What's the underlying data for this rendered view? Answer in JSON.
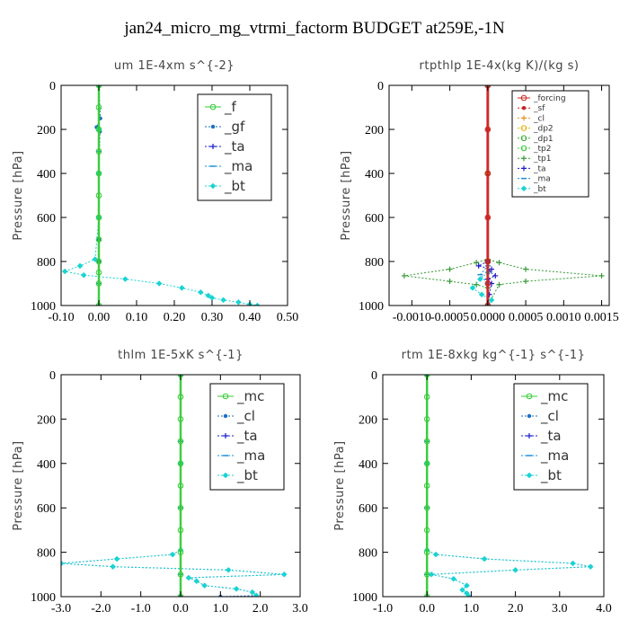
{
  "figure_title": "jan24_micro_mg_vtrmi_factorm  BUDGET at259E,-1N",
  "chart_data": [
    {
      "type": "line",
      "title": "um   1E-4xm s^{-2}",
      "ylabel": "Pressure [hPa]",
      "xlim": [
        -0.1,
        0.5
      ],
      "ylim": [
        1000,
        0
      ],
      "xticks": [
        "-0.10",
        "0.00",
        "0.10",
        "0.20",
        "0.30",
        "0.40",
        "0.50"
      ],
      "yticks": [
        "0",
        "200",
        "400",
        "600",
        "800",
        "1000"
      ],
      "legend_placement": "top-right",
      "legend_style": "large",
      "series": [
        {
          "name": "_f",
          "color": "#33cc33",
          "marker": "circle",
          "x": [
            0,
            0,
            0,
            0,
            0,
            0,
            0,
            0,
            0,
            0,
            0,
            0
          ],
          "y": [
            0,
            100,
            200,
            300,
            400,
            500,
            600,
            700,
            800,
            850,
            900,
            1000
          ]
        },
        {
          "name": "_gf",
          "color": "#1a6fc0",
          "marker": "dot",
          "x": [
            0,
            0.004,
            -0.006,
            0.003,
            0,
            0,
            0,
            0
          ],
          "y": [
            0,
            150,
            190,
            210,
            400,
            600,
            700,
            800
          ]
        },
        {
          "name": "_ta",
          "color": "#1a1acc",
          "marker": "plus",
          "x": [
            0,
            0,
            0,
            0,
            0
          ],
          "y": [
            0,
            300,
            600,
            900,
            1000
          ]
        },
        {
          "name": "_ma",
          "color": "#1a8fd6",
          "marker": "dash",
          "x": [
            0,
            0,
            0,
            0,
            0
          ],
          "y": [
            0,
            300,
            600,
            900,
            1000
          ]
        },
        {
          "name": "_bt",
          "color": "#19d3d3",
          "marker": "diamond",
          "x": [
            0,
            0,
            0,
            0,
            -0.01,
            -0.05,
            -0.09,
            -0.04,
            0.07,
            0.16,
            0.22,
            0.27,
            0.29,
            0.3,
            0.33,
            0.37,
            0.4,
            0.42
          ],
          "y": [
            0,
            200,
            400,
            600,
            790,
            820,
            845,
            862,
            880,
            900,
            920,
            940,
            955,
            965,
            975,
            985,
            995,
            1000
          ]
        }
      ]
    },
    {
      "type": "line",
      "title": "rtpthlp   1E-4x(kg K)/(kg s)",
      "ylabel": "Pressure [hPa]",
      "xlim": [
        -0.0013,
        0.0016
      ],
      "ylim": [
        1000,
        0
      ],
      "xticks": [
        "-0.0010",
        "-0.0005",
        "0.0000",
        "0.0005",
        "0.0010",
        "0.0015"
      ],
      "yticks": [
        "0",
        "200",
        "400",
        "600",
        "800",
        "1000"
      ],
      "legend_placement": "top-right",
      "legend_style": "small",
      "series": [
        {
          "name": "_forcing",
          "color": "#cc2222",
          "marker": "circle",
          "x": [
            0,
            0,
            0,
            0,
            0,
            0,
            0
          ],
          "y": [
            0,
            200,
            400,
            600,
            800,
            900,
            1000
          ]
        },
        {
          "name": "_sf",
          "color": "#cc2222",
          "marker": "dot",
          "x": [
            0,
            0,
            0,
            0,
            0,
            0,
            0
          ],
          "y": [
            0,
            200,
            400,
            600,
            800,
            900,
            1000
          ]
        },
        {
          "name": "_cl",
          "color": "#e89020",
          "marker": "plus",
          "x": [
            0,
            0,
            0,
            0
          ],
          "y": [
            0,
            400,
            800,
            1000
          ]
        },
        {
          "name": "_dp2",
          "color": "#e0b000",
          "marker": "circle",
          "x": [
            0,
            0,
            0,
            0
          ],
          "y": [
            0,
            400,
            800,
            1000
          ]
        },
        {
          "name": "_dp1",
          "color": "#33aa33",
          "marker": "circle",
          "x": [
            0,
            0,
            0,
            0
          ],
          "y": [
            0,
            400,
            800,
            1000
          ]
        },
        {
          "name": "_tp2",
          "color": "#33cc33",
          "marker": "circle",
          "x": [
            0,
            0,
            0,
            0
          ],
          "y": [
            0,
            400,
            800,
            1000
          ]
        },
        {
          "name": "_tp1",
          "color": "#339933",
          "marker": "plus",
          "x": [
            0,
            0,
            -0.00015,
            -0.0005,
            -0.0011,
            -0.0005,
            -0.00015,
            0,
            0,
            0.00015,
            0.0005,
            0.0015,
            0.0005,
            0.00015,
            0,
            0
          ],
          "y": [
            0,
            790,
            805,
            835,
            865,
            890,
            905,
            920,
            1000,
            905,
            890,
            865,
            835,
            805,
            790,
            0
          ]
        },
        {
          "name": "_ta",
          "color": "#1a1acc",
          "marker": "plus",
          "x": [
            0,
            0,
            -0.00012,
            5e-05,
            2e-05,
            0.0001,
            0,
            5e-05,
            2e-05,
            0
          ],
          "y": [
            0,
            800,
            820,
            835,
            845,
            865,
            880,
            900,
            950,
            1000
          ]
        },
        {
          "name": "_ma",
          "color": "#1a8fd6",
          "marker": "dash",
          "x": [
            0,
            0,
            -0.0001,
            0,
            0
          ],
          "y": [
            0,
            820,
            860,
            900,
            1000
          ]
        },
        {
          "name": "_bt",
          "color": "#19d3d3",
          "marker": "diamond",
          "x": [
            0,
            0,
            -0.0001,
            -0.0002,
            -8e-05,
            5e-05,
            0
          ],
          "y": [
            0,
            850,
            880,
            920,
            950,
            975,
            1000
          ]
        }
      ]
    },
    {
      "type": "line",
      "title": "thlm   1E-5xK s^{-1}",
      "ylabel": "Pressure [hPa]",
      "xlim": [
        -3.0,
        3.0
      ],
      "ylim": [
        1000,
        0
      ],
      "xticks": [
        "-3.0",
        "-2.0",
        "-1.0",
        "0.0",
        "1.0",
        "2.0",
        "3.0"
      ],
      "yticks": [
        "0",
        "200",
        "400",
        "600",
        "800",
        "1000"
      ],
      "legend_placement": "top-right",
      "legend_style": "large",
      "series": [
        {
          "name": "_mc",
          "color": "#33cc33",
          "marker": "circle",
          "x": [
            0,
            0,
            0,
            0,
            0,
            0,
            0,
            0,
            0,
            0,
            0
          ],
          "y": [
            0,
            100,
            200,
            300,
            400,
            500,
            600,
            700,
            800,
            900,
            1000
          ]
        },
        {
          "name": "_cl",
          "color": "#1a6fc0",
          "marker": "dot",
          "x": [
            0,
            0,
            0,
            -0.2,
            -1.6,
            -3.0,
            -1.7,
            1.2,
            2.6,
            0.2,
            0.4,
            0.6,
            1.4,
            1.8,
            1.9,
            1.0,
            0
          ],
          "y": [
            0,
            400,
            790,
            810,
            830,
            850,
            865,
            880,
            900,
            915,
            930,
            950,
            965,
            980,
            995,
            1000,
            1000
          ]
        },
        {
          "name": "_ta",
          "color": "#1a1acc",
          "marker": "plus",
          "x": [
            0,
            0,
            0,
            0,
            0
          ],
          "y": [
            0,
            300,
            600,
            900,
            1000
          ]
        },
        {
          "name": "_ma",
          "color": "#1a8fd6",
          "marker": "dash",
          "x": [
            0,
            0,
            0,
            0,
            0
          ],
          "y": [
            0,
            300,
            600,
            900,
            1000
          ]
        },
        {
          "name": "_bt",
          "color": "#19d3d3",
          "marker": "diamond",
          "x": [
            0,
            0,
            0,
            -0.2,
            -1.6,
            -3.0,
            -1.7,
            1.2,
            2.6,
            0.2,
            0.4,
            0.6,
            1.4,
            1.8,
            1.9
          ],
          "y": [
            0,
            400,
            790,
            810,
            830,
            850,
            865,
            880,
            900,
            915,
            930,
            950,
            965,
            980,
            995
          ]
        }
      ]
    },
    {
      "type": "line",
      "title": "rtm   1E-8xkg kg^{-1} s^{-1}",
      "ylabel": "Pressure [hPa]",
      "xlim": [
        -1.0,
        4.0
      ],
      "ylim": [
        1000,
        0
      ],
      "xticks": [
        "-1.0",
        "0.0",
        "1.0",
        "2.0",
        "3.0",
        "4.0"
      ],
      "yticks": [
        "0",
        "200",
        "400",
        "600",
        "800",
        "1000"
      ],
      "legend_placement": "top-right",
      "legend_style": "large",
      "series": [
        {
          "name": "_mc",
          "color": "#33cc33",
          "marker": "circle",
          "x": [
            0,
            0,
            0,
            0,
            0,
            0,
            0,
            0,
            0,
            0,
            0
          ],
          "y": [
            0,
            100,
            200,
            300,
            400,
            500,
            600,
            700,
            800,
            900,
            1000
          ]
        },
        {
          "name": "_cl",
          "color": "#1a6fc0",
          "marker": "dot",
          "x": [
            0,
            0,
            0,
            0.2,
            1.3,
            3.3,
            3.7,
            2.0,
            0.1,
            0.6,
            0.9,
            0.8,
            0.9,
            0.95
          ],
          "y": [
            0,
            400,
            790,
            810,
            830,
            850,
            865,
            880,
            900,
            920,
            950,
            970,
            985,
            1000
          ]
        },
        {
          "name": "_ta",
          "color": "#1a1acc",
          "marker": "plus",
          "x": [
            0,
            0,
            0,
            0,
            0
          ],
          "y": [
            0,
            300,
            600,
            900,
            1000
          ]
        },
        {
          "name": "_ma",
          "color": "#1a8fd6",
          "marker": "dash",
          "x": [
            0,
            0,
            0,
            0,
            0
          ],
          "y": [
            0,
            300,
            600,
            900,
            1000
          ]
        },
        {
          "name": "_bt",
          "color": "#19d3d3",
          "marker": "diamond",
          "x": [
            0,
            0,
            0,
            0.2,
            1.3,
            3.3,
            3.7,
            2.0,
            0.1,
            0.6,
            0.9,
            0.8,
            0.9,
            0.95
          ],
          "y": [
            0,
            400,
            790,
            810,
            830,
            850,
            865,
            880,
            900,
            920,
            950,
            970,
            985,
            1000
          ]
        }
      ]
    }
  ]
}
